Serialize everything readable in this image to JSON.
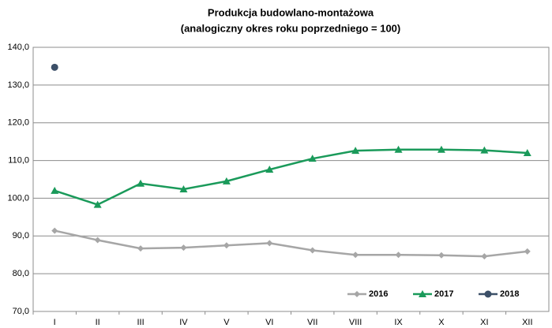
{
  "chart_data": {
    "type": "line",
    "title": "Produkcja budowlano-montażowa",
    "subtitle": "(analogiczny okres roku poprzedniego = 100)",
    "categories": [
      "I",
      "II",
      "III",
      "IV",
      "V",
      "VI",
      "VII",
      "VIII",
      "IX",
      "X",
      "XI",
      "XII"
    ],
    "series": [
      {
        "name": "2016",
        "color": "#a6a6a6",
        "marker": "diamond",
        "values": [
          91.4,
          88.9,
          86.7,
          86.9,
          87.5,
          88.1,
          86.2,
          85.0,
          85.0,
          84.9,
          84.6,
          85.9
        ]
      },
      {
        "name": "2017",
        "color": "#1a9a5a",
        "marker": "triangle",
        "values": [
          102.0,
          98.3,
          103.9,
          102.4,
          104.5,
          107.6,
          110.5,
          112.6,
          112.9,
          112.9,
          112.7,
          112.0
        ]
      },
      {
        "name": "2018",
        "color": "#3c5068",
        "marker": "circle",
        "values": [
          134.7,
          null,
          null,
          null,
          null,
          null,
          null,
          null,
          null,
          null,
          null,
          null
        ]
      }
    ],
    "ylim": [
      70,
      140
    ],
    "yticks": [
      {
        "value": 70,
        "label": "70,0"
      },
      {
        "value": 80,
        "label": "80,0"
      },
      {
        "value": 90,
        "label": "90,0"
      },
      {
        "value": 100,
        "label": "100,0"
      },
      {
        "value": 110,
        "label": "110,0"
      },
      {
        "value": 120,
        "label": "120,0"
      },
      {
        "value": 130,
        "label": "130,0"
      },
      {
        "value": 140,
        "label": "140,0"
      }
    ],
    "grid": true,
    "legend": "bottom-right"
  }
}
